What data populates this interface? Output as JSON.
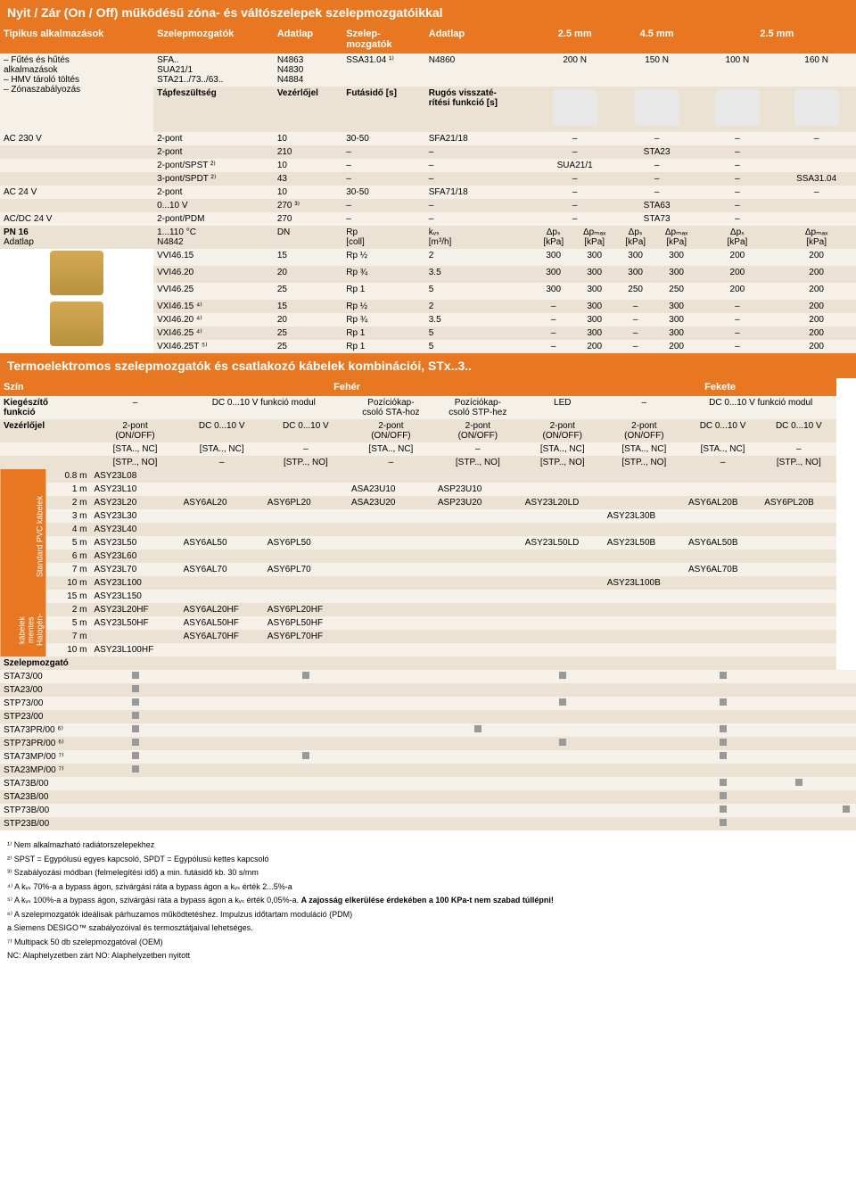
{
  "title1": "Nyit / Zár (On / Off) működésű zóna- és váltószelepek szelepmozgatóikkal",
  "title2": "Termoelektromos szelepmozgatók és csatlakozó kábelek kombinációi, STx..3..",
  "t1": {
    "h": {
      "c0": "Tipikus alkalmazások",
      "c1": "Szelepmozgatók",
      "c2": "Adatlap",
      "c3": "Szelep-\nmozgatók",
      "c4": "Adatlap",
      "c5": "2.5 mm",
      "c6": "4.5 mm",
      "c7": "2.5 mm"
    },
    "apps": [
      "– Fűtés és hűtés",
      "  alkalmazások",
      "– HMV tároló töltés",
      "– Zónaszabályozás"
    ],
    "r1": {
      "c1a": "SFA..",
      "c1b": "SUA21/1",
      "c1c": "STA21../73../63..",
      "c2a": "N4863",
      "c2b": "N4830",
      "c2c": "N4884",
      "c3": "SSA31.04 ¹⁾",
      "c4": "N4860",
      "c5": "200 N",
      "c6": "150 N",
      "c7": "100 N",
      "c8": "160 N"
    },
    "r2": {
      "c1": "Tápfeszültség",
      "c2": "Vezérlőjel",
      "c3": "Futásidő [s]",
      "c4": "Rugós visszaté-\nrítési funkció [s]"
    },
    "rows": [
      {
        "c0": "AC 230 V",
        "c1": "2-pont",
        "c2": "10",
        "c3": "30-50",
        "c4": "SFA21/18",
        "c5": "–",
        "c6": "–",
        "c7": "–",
        "c8": "–",
        "bg": "lt"
      },
      {
        "c0": "",
        "c1": "2-pont",
        "c2": "210",
        "c3": "–",
        "c4": "–",
        "c5": "–",
        "c6": "STA23",
        "c7": "–",
        "c8": "",
        "bg": "dk"
      },
      {
        "c0": "",
        "c1": "2-pont/SPST ²⁾",
        "c2": "10",
        "c3": "–",
        "c4": "–",
        "c5": "SUA21/1",
        "c6": "–",
        "c7": "–",
        "c8": "",
        "bg": "lt"
      },
      {
        "c0": "",
        "c1": "3-pont/SPDT ²⁾",
        "c2": "43",
        "c3": "–",
        "c4": "–",
        "c5": "–",
        "c6": "–",
        "c7": "–",
        "c8": "SSA31.04",
        "bg": "dk"
      },
      {
        "c0": "AC 24 V",
        "c1": "2-pont",
        "c2": "10",
        "c3": "30-50",
        "c4": "SFA71/18",
        "c5": "–",
        "c6": "–",
        "c7": "–",
        "c8": "–",
        "bg": "lt"
      },
      {
        "c0": "",
        "c1": "0...10 V",
        "c2": "270 ³⁾",
        "c3": "–",
        "c4": "–",
        "c5": "–",
        "c6": "STA63",
        "c7": "–",
        "c8": "",
        "bg": "dk"
      },
      {
        "c0": "AC/DC 24 V",
        "c1": "2-pont/PDM",
        "c2": "270",
        "c3": "–",
        "c4": "–",
        "c5": "–",
        "c6": "STA73",
        "c7": "–",
        "c8": "",
        "bg": "lt"
      }
    ],
    "pn": {
      "c0": "PN 16",
      "c0b": "Adatlap",
      "c1": "1...110 °C",
      "c1b": "N4842",
      "c2": "DN",
      "c3": "Rp\n[coll]",
      "c4": "kᵥₛ\n[m³/h]",
      "c5": "Δpₛ\n[kPa]",
      "c6": "Δpₘₐₓ\n[kPa]",
      "c7": "Δpₛ\n[kPa]",
      "c8": "Δpₘₐₓ\n[kPa]",
      "c9": "Δpₛ\n[kPa]",
      "c10": "Δpₘₐₓ\n[kPa]"
    },
    "vrows": [
      {
        "c0": "VVI46.15",
        "c1": "15",
        "c2": "Rp ½",
        "c3": "2",
        "c4": "300",
        "c5": "300",
        "c6": "300",
        "c7": "300",
        "c8": "200",
        "c9": "200",
        "bg": "lt"
      },
      {
        "c0": "VVI46.20",
        "c1": "20",
        "c2": "Rp ¾",
        "c3": "3.5",
        "c4": "300",
        "c5": "300",
        "c6": "300",
        "c7": "300",
        "c8": "200",
        "c9": "200",
        "bg": "dk"
      },
      {
        "c0": "VVI46.25",
        "c1": "25",
        "c2": "Rp 1",
        "c3": "5",
        "c4": "300",
        "c5": "300",
        "c6": "250",
        "c7": "250",
        "c8": "200",
        "c9": "200",
        "bg": "lt"
      },
      {
        "c0": "VXI46.15 ⁴⁾",
        "c1": "15",
        "c2": "Rp ½",
        "c3": "2",
        "c4": "–",
        "c5": "300",
        "c6": "–",
        "c7": "300",
        "c8": "–",
        "c9": "200",
        "bg": "dk"
      },
      {
        "c0": "VXI46.20 ⁴⁾",
        "c1": "20",
        "c2": "Rp ¾",
        "c3": "3.5",
        "c4": "–",
        "c5": "300",
        "c6": "–",
        "c7": "300",
        "c8": "–",
        "c9": "200",
        "bg": "lt"
      },
      {
        "c0": "VXI46.25 ⁴⁾",
        "c1": "25",
        "c2": "Rp 1",
        "c3": "5",
        "c4": "–",
        "c5": "300",
        "c6": "–",
        "c7": "300",
        "c8": "–",
        "c9": "200",
        "bg": "dk"
      },
      {
        "c0": "VXI46.25T ⁵⁾",
        "c1": "25",
        "c2": "Rp 1",
        "c3": "5",
        "c4": "–",
        "c5": "200",
        "c6": "–",
        "c7": "200",
        "c8": "–",
        "c9": "200",
        "bg": "lt"
      }
    ]
  },
  "t2": {
    "h1": {
      "c0": "Szín",
      "c1": "Fehér",
      "c2": "Fekete"
    },
    "h2": {
      "c0": "Kiegészítő\nfunkció",
      "c1": "–",
      "c2": "DC 0...10 V funkció modul",
      "c3": "Pozíciókap-\ncsoló STA-hoz",
      "c4": "Pozíciókap-\ncsoló STP-hez",
      "c5": "LED",
      "c6": "–",
      "c7": "DC 0...10 V funkció modul"
    },
    "h3": {
      "c0": "Vezérlőjel",
      "c1": "2-pont\n(ON/OFF)",
      "c2": "DC 0...10 V",
      "c3": "DC 0...10 V",
      "c4": "2-pont\n(ON/OFF)",
      "c5": "2-pont\n(ON/OFF)",
      "c6": "2-pont\n(ON/OFF)",
      "c7": "2-pont\n(ON/OFF)",
      "c8": "DC 0...10 V",
      "c9": "DC 0...10 V"
    },
    "h4": {
      "c1": "[STA.., NC]",
      "c2": "[STA.., NC]",
      "c3": "–",
      "c4": "[STA.., NC]",
      "c5": "–",
      "c6": "[STA.., NC]",
      "c7": "[STA.., NC]",
      "c8": "[STA.., NC]",
      "c9": "–"
    },
    "h5": {
      "c1": "[STP.., NO]",
      "c2": "–",
      "c3": "[STP.., NO]",
      "c4": "–",
      "c5": "[STP.., NO]",
      "c6": "[STP.., NO]",
      "c7": "[STP.., NO]",
      "c8": "–",
      "c9": "[STP.., NO]"
    },
    "side1": "Standard PVC kábelek",
    "side2": "Halogén-\nmentes\nkábelek",
    "crows": [
      {
        "l": "0.8 m",
        "c1": "ASY23L08",
        "bg": "dk"
      },
      {
        "l": "1 m",
        "c1": "ASY23L10",
        "c4": "ASA23U10",
        "c5": "ASP23U10",
        "bg": "lt"
      },
      {
        "l": "2 m",
        "c1": "ASY23L20",
        "c2": "ASY6AL20",
        "c3": "ASY6PL20",
        "c4": "ASA23U20",
        "c5": "ASP23U20",
        "c6": "ASY23L20LD",
        "c8": "ASY6AL20B",
        "c9": "ASY6PL20B",
        "bg": "dk"
      },
      {
        "l": "3 m",
        "c1": "ASY23L30",
        "c7": "ASY23L30B",
        "bg": "lt"
      },
      {
        "l": "4 m",
        "c1": "ASY23L40",
        "bg": "dk"
      },
      {
        "l": "5 m",
        "c1": "ASY23L50",
        "c2": "ASY6AL50",
        "c3": "ASY6PL50",
        "c6": "ASY23L50LD",
        "c7": "ASY23L50B",
        "c8": "ASY6AL50B",
        "bg": "lt"
      },
      {
        "l": "6 m",
        "c1": "ASY23L60",
        "bg": "dk"
      },
      {
        "l": "7 m",
        "c1": "ASY23L70",
        "c2": "ASY6AL70",
        "c3": "ASY6PL70",
        "c8": "ASY6AL70B",
        "bg": "lt"
      },
      {
        "l": "10 m",
        "c1": "ASY23L100",
        "c7": "ASY23L100B",
        "bg": "dk"
      },
      {
        "l": "15 m",
        "c1": "ASY23L150",
        "bg": "lt"
      }
    ],
    "hrows": [
      {
        "l": "2 m",
        "c1": "ASY23L20HF",
        "c2": "ASY6AL20HF",
        "c3": "ASY6PL20HF",
        "bg": "dk"
      },
      {
        "l": "5 m",
        "c1": "ASY23L50HF",
        "c2": "ASY6AL50HF",
        "c3": "ASY6PL50HF",
        "bg": "lt"
      },
      {
        "l": "7 m",
        "c2": "ASY6AL70HF",
        "c3": "ASY6PL70HF",
        "bg": "dk"
      },
      {
        "l": "10 m",
        "c1": "ASY23L100HF",
        "bg": "lt"
      }
    ],
    "moz": "Szelepmozgató",
    "mrows": [
      {
        "c0": "STA73/00",
        "m": [
          1,
          0,
          1,
          0,
          0,
          1,
          0,
          1,
          0,
          0
        ],
        "bg": "lt"
      },
      {
        "c0": "STA23/00",
        "m": [
          1,
          0,
          0,
          0,
          0,
          0,
          0,
          0,
          0,
          0
        ],
        "bg": "dk"
      },
      {
        "c0": "STP73/00",
        "m": [
          1,
          0,
          0,
          0,
          0,
          1,
          0,
          1,
          0,
          0
        ],
        "bg": "lt"
      },
      {
        "c0": "STP23/00",
        "m": [
          1,
          0,
          0,
          0,
          0,
          0,
          0,
          0,
          0,
          0
        ],
        "bg": "dk"
      },
      {
        "c0": "STA73PR/00 ⁶⁾",
        "m": [
          1,
          0,
          0,
          0,
          1,
          0,
          0,
          1,
          0,
          0
        ],
        "bg": "lt"
      },
      {
        "c0": "STP73PR/00 ⁶⁾",
        "m": [
          1,
          0,
          0,
          0,
          0,
          1,
          0,
          1,
          0,
          0
        ],
        "bg": "dk"
      },
      {
        "c0": "STA73MP/00 ⁷⁾",
        "m": [
          1,
          0,
          1,
          0,
          0,
          0,
          0,
          1,
          0,
          0
        ],
        "bg": "lt"
      },
      {
        "c0": "STA23MP/00 ⁷⁾",
        "m": [
          1,
          0,
          0,
          0,
          0,
          0,
          0,
          0,
          0,
          0
        ],
        "bg": "dk"
      },
      {
        "c0": "STA73B/00",
        "m": [
          0,
          0,
          0,
          0,
          0,
          0,
          0,
          1,
          1,
          0
        ],
        "bg": "lt"
      },
      {
        "c0": "STA23B/00",
        "m": [
          0,
          0,
          0,
          0,
          0,
          0,
          0,
          1,
          0,
          0
        ],
        "bg": "dk"
      },
      {
        "c0": "STP73B/00",
        "m": [
          0,
          0,
          0,
          0,
          0,
          0,
          0,
          1,
          0,
          1
        ],
        "bg": "lt"
      },
      {
        "c0": "STP23B/00",
        "m": [
          0,
          0,
          0,
          0,
          0,
          0,
          0,
          1,
          0,
          0
        ],
        "bg": "dk"
      }
    ]
  },
  "fn": [
    "¹⁾ Nem alkalmazható radiátorszelepekhez",
    "²⁾ SPST = Egypólusú egyes kapcsoló, SPDT = Egypólusú kettes kapcsoló",
    "³⁾ Szabályozási módban (felmelegítési idő) a min. futásidő kb. 30 s/mm",
    "⁴⁾ A kᵥₛ 70%-a a bypass ágon, szivárgási ráta a bypass ágon a kᵥₛ érték 2...5%-a",
    "⁵⁾ A kᵥₛ 100%-a a bypass ágon, szivárgási ráta a bypass ágon a kᵥₛ érték 0,05%-a. A zajosság elkerülése érdekében a 100 KPa-t nem szabad túllépni!",
    "⁶⁾ A szelepmozgatók ideálisak párhuzamos működtetéshez. Impulzus időtartam moduláció (PDM)",
    "   a Siemens DESIGO™ szabályozóival és termosztátjaival lehetséges.",
    "⁷⁾ Multipack 50 db szelepmozgatóval (OEM)",
    "   NC: Alaphelyzetben zárt  NO: Alaphelyzetben nyitott"
  ]
}
